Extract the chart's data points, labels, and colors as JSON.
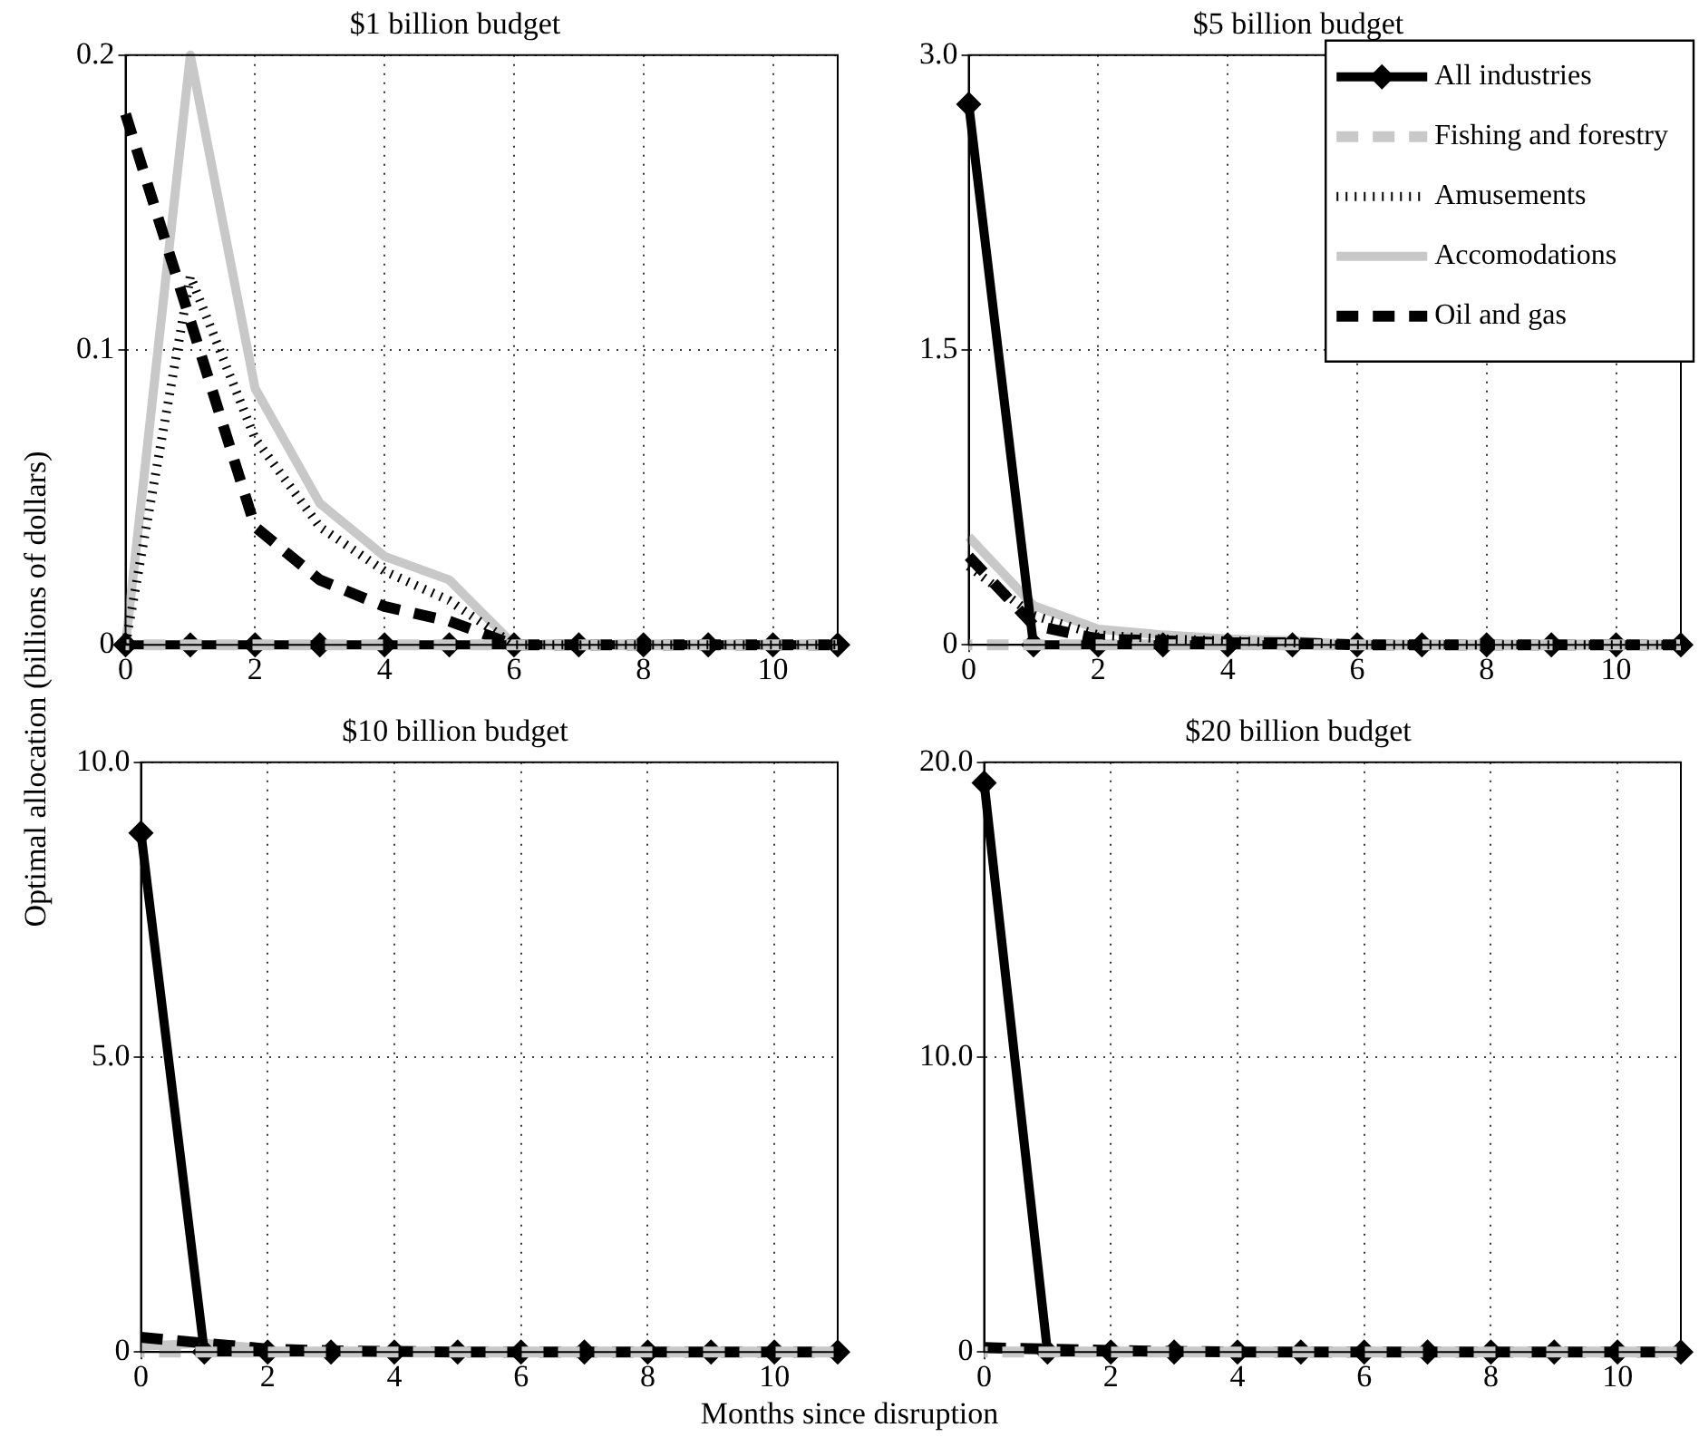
{
  "chart_data": [
    {
      "type": "line",
      "title": "$1 billion budget",
      "xlabel": "Months since disruption",
      "ylabel": "Optimal allocation (billions of dollars)",
      "x": [
        0,
        1,
        2,
        3,
        4,
        5,
        6,
        7,
        8,
        9,
        10,
        11
      ],
      "xlim": [
        0,
        11
      ],
      "xticks": [
        0,
        2,
        4,
        6,
        8,
        10
      ],
      "ylim": [
        0,
        0.2
      ],
      "yticks": [
        0,
        0.1,
        0.2
      ],
      "grid": true,
      "legend": false,
      "series": [
        {
          "color": "#000000",
          "marker": "diamond",
          "line_style": "solid",
          "values": [
            0,
            0,
            0,
            0,
            0,
            0,
            0,
            0,
            0,
            0,
            0,
            0
          ]
        },
        {
          "color": "#c8c8c8",
          "line_style": "dashed",
          "values": [
            0,
            0,
            0,
            0,
            0,
            0,
            0,
            0,
            0,
            0,
            0,
            0
          ]
        },
        {
          "color": "#000000",
          "line_style": "dotted",
          "values": [
            0,
            0.125,
            0.07,
            0.04,
            0.025,
            0.015,
            0,
            0,
            0,
            0,
            0,
            0
          ]
        },
        {
          "color": "#c8c8c8",
          "line_style": "solid",
          "values": [
            0,
            0.2,
            0.087,
            0.048,
            0.03,
            0.022,
            0,
            0,
            0,
            0,
            0,
            0
          ]
        },
        {
          "color": "#000000",
          "line_style": "dashed",
          "values": [
            0.18,
            0.11,
            0.04,
            0.022,
            0.013,
            0.008,
            0,
            0,
            0,
            0,
            0,
            0
          ]
        }
      ]
    },
    {
      "type": "line",
      "title": "$5 billion budget",
      "x": [
        0,
        1,
        2,
        3,
        4,
        5,
        6,
        7,
        8,
        9,
        10,
        11
      ],
      "xlim": [
        0,
        11
      ],
      "xticks": [
        0,
        2,
        4,
        6,
        8,
        10
      ],
      "ylim": [
        0,
        3
      ],
      "yticks": [
        0,
        1.5,
        {
          "value": 3,
          "label": "3.0"
        }
      ],
      "grid": true,
      "legend": "top right",
      "series": [
        {
          "name": "All industries",
          "color": "#000000",
          "marker": "diamond",
          "line_style": "solid",
          "values": [
            2.75,
            0,
            0,
            0,
            0,
            0,
            0,
            0,
            0,
            0,
            0,
            0
          ]
        },
        {
          "name": "Fishing and forestry",
          "color": "#c8c8c8",
          "line_style": "dashed",
          "values": [
            0,
            0,
            0,
            0,
            0,
            0,
            0,
            0,
            0,
            0,
            0,
            0
          ]
        },
        {
          "name": "Amusements",
          "color": "#000000",
          "line_style": "dotted",
          "values": [
            0.4,
            0.15,
            0.05,
            0.03,
            0.02,
            0.01,
            0,
            0,
            0,
            0,
            0,
            0
          ]
        },
        {
          "name": "Accomodations",
          "color": "#c8c8c8",
          "line_style": "solid",
          "values": [
            0.55,
            0.2,
            0.08,
            0.05,
            0.03,
            0.02,
            0,
            0,
            0,
            0,
            0,
            0
          ]
        },
        {
          "name": "Oil and gas",
          "color": "#000000",
          "line_style": "dashed",
          "values": [
            0.45,
            0.1,
            0.03,
            0.02,
            0.01,
            0.01,
            0,
            0,
            0,
            0,
            0,
            0
          ]
        }
      ]
    },
    {
      "type": "line",
      "title": "$10 billion budget",
      "x": [
        0,
        1,
        2,
        3,
        4,
        5,
        6,
        7,
        8,
        9,
        10,
        11
      ],
      "xlim": [
        0,
        11
      ],
      "xticks": [
        0,
        2,
        4,
        6,
        8,
        10
      ],
      "ylim": [
        0,
        10
      ],
      "yticks": [
        0,
        {
          "value": 5,
          "label": "5.0"
        },
        {
          "value": 10,
          "label": "10.0"
        }
      ],
      "grid": true,
      "legend": false,
      "series": [
        {
          "color": "#000000",
          "marker": "diamond",
          "line_style": "solid",
          "values": [
            8.8,
            0,
            0,
            0,
            0,
            0,
            0,
            0,
            0,
            0,
            0,
            0
          ]
        },
        {
          "color": "#c8c8c8",
          "line_style": "dashed",
          "values": [
            0,
            0,
            0,
            0,
            0,
            0,
            0,
            0,
            0,
            0,
            0,
            0
          ]
        },
        {
          "color": "#000000",
          "line_style": "dotted",
          "values": [
            null,
            null,
            null,
            null,
            null,
            null,
            null,
            null,
            null,
            null,
            null,
            null
          ]
        },
        {
          "color": "#c8c8c8",
          "line_style": "solid",
          "values": [
            0.1,
            0.15,
            0.05,
            null,
            null,
            null,
            null,
            null,
            null,
            null,
            null,
            null
          ]
        },
        {
          "color": "#000000",
          "line_style": "dashed",
          "values": [
            0.25,
            0.15,
            0.05,
            0.02,
            0.01,
            0,
            0,
            0,
            0,
            0,
            0,
            0
          ]
        }
      ]
    },
    {
      "type": "line",
      "title": "$20 billion budget",
      "x": [
        0,
        1,
        2,
        3,
        4,
        5,
        6,
        7,
        8,
        9,
        10,
        11
      ],
      "xlim": [
        0,
        11
      ],
      "xticks": [
        0,
        2,
        4,
        6,
        8,
        10
      ],
      "ylim": [
        0,
        20
      ],
      "yticks": [
        0,
        {
          "value": 10,
          "label": "10.0"
        },
        {
          "value": 20,
          "label": "20.0"
        }
      ],
      "grid": true,
      "legend": false,
      "series": [
        {
          "color": "#000000",
          "marker": "diamond",
          "line_style": "solid",
          "values": [
            19.3,
            0,
            0,
            0,
            0,
            0,
            0,
            0,
            0,
            0,
            0,
            0
          ]
        },
        {
          "color": "#c8c8c8",
          "line_style": "dashed",
          "values": [
            0,
            0,
            0,
            0,
            0,
            0,
            0,
            0,
            0,
            0,
            0,
            0
          ]
        },
        {
          "color": "#000000",
          "line_style": "dotted",
          "values": [
            null,
            null,
            null,
            null,
            null,
            null,
            null,
            null,
            null,
            null,
            null,
            null
          ]
        },
        {
          "color": "#c8c8c8",
          "line_style": "solid",
          "values": [
            null,
            null,
            null,
            null,
            null,
            null,
            null,
            null,
            null,
            null,
            null,
            null
          ]
        },
        {
          "color": "#000000",
          "line_style": "dashed",
          "values": [
            0.15,
            0.1,
            0.05,
            0.02,
            0,
            0,
            0,
            0,
            0,
            0,
            0,
            0
          ]
        }
      ]
    }
  ]
}
